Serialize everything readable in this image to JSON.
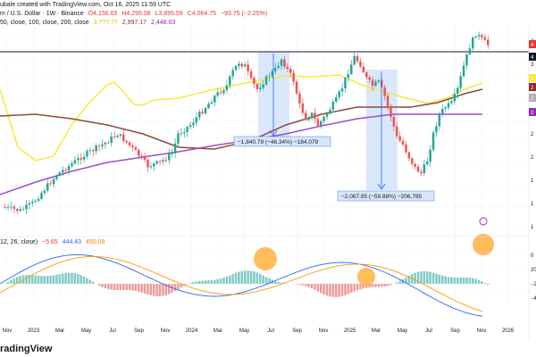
{
  "header": {
    "line1_prefix": "ubale created with TradingView.com, Oct 16, 2025 11:59 UTC",
    "line2_symbol": "m / U.S. Dollar · 1W · Binance",
    "ohlc": [
      "O4,156.65",
      "H4,295.08",
      "L3,895.59",
      "C4,064.75",
      "−93.75 (−2.25%)"
    ],
    "ma_label": "50, close, 100, close, 200, close",
    "ma_values": [
      "3,???.??",
      "2,997.17",
      "2,448.03"
    ],
    "macd_label": "12, 26, close)",
    "macd_values": [
      "−5.65",
      "444.43",
      "450.09"
    ]
  },
  "logo_text": "radingView",
  "colors": {
    "up": "#26a69a",
    "down": "#ef5350",
    "ma50": "#f5ea3b",
    "ma100": "#8d4a3a",
    "ma200": "#9c4dcc",
    "macd": "#2962ff",
    "signal": "#ff9800",
    "annotation_fill": "#bbd6f7",
    "highlight_circle": "#ffa726"
  },
  "chart_data": {
    "type": "candlestick",
    "timeframe": "1W",
    "x_ticks": [
      "Nov",
      "2023",
      "Mar",
      "May",
      "Jul",
      "Sep",
      "Nov",
      "2024",
      "Mar",
      "May",
      "Jul",
      "Sep",
      "Nov",
      "2025",
      "Mar",
      "May",
      "Jul",
      "Sep",
      "Nov",
      "2026"
    ],
    "price_axis_labels": [
      "4",
      "3",
      "2",
      "2",
      "2",
      "2",
      "1",
      "1",
      "1"
    ],
    "price_boxes": [
      "3",
      "2",
      "2",
      "2",
      "4",
      "4"
    ],
    "macd_axis_labels": [
      "0",
      "20",
      "−20",
      "−4"
    ],
    "annotations": [
      {
        "text": "−1,840.79 (−46.34%) −184,079"
      },
      {
        "text": "−2,067.85 (−59.88%) −206,785"
      }
    ]
  }
}
